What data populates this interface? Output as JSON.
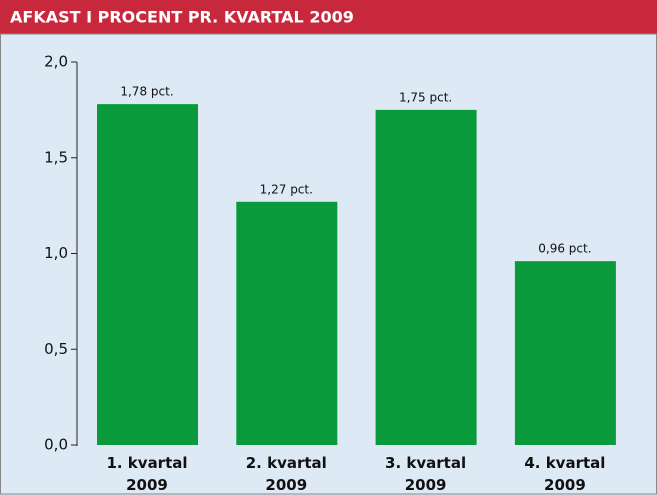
{
  "chart_data": {
    "type": "bar",
    "title": "AFKAST I PROCENT PR. KVARTAL 2009",
    "categories": [
      "1. kvartal 2009",
      "2. kvartal 2009",
      "3. kvartal 2009",
      "4. kvartal 2009"
    ],
    "values": [
      1.78,
      1.27,
      1.75,
      0.96
    ],
    "value_labels": [
      "1,78 pct.",
      "1,27 pct.",
      "1,75 pct.",
      "0,96 pct."
    ],
    "color": "#0a9a3c",
    "ylim": [
      0,
      2
    ],
    "yticks": [
      {
        "value": 0,
        "label": "0,0"
      },
      {
        "value": 0.5,
        "label": "0,5"
      },
      {
        "value": 1,
        "label": "1,0"
      },
      {
        "value": 1.5,
        "label": "1,5"
      },
      {
        "value": 2,
        "label": "2,0"
      }
    ]
  }
}
